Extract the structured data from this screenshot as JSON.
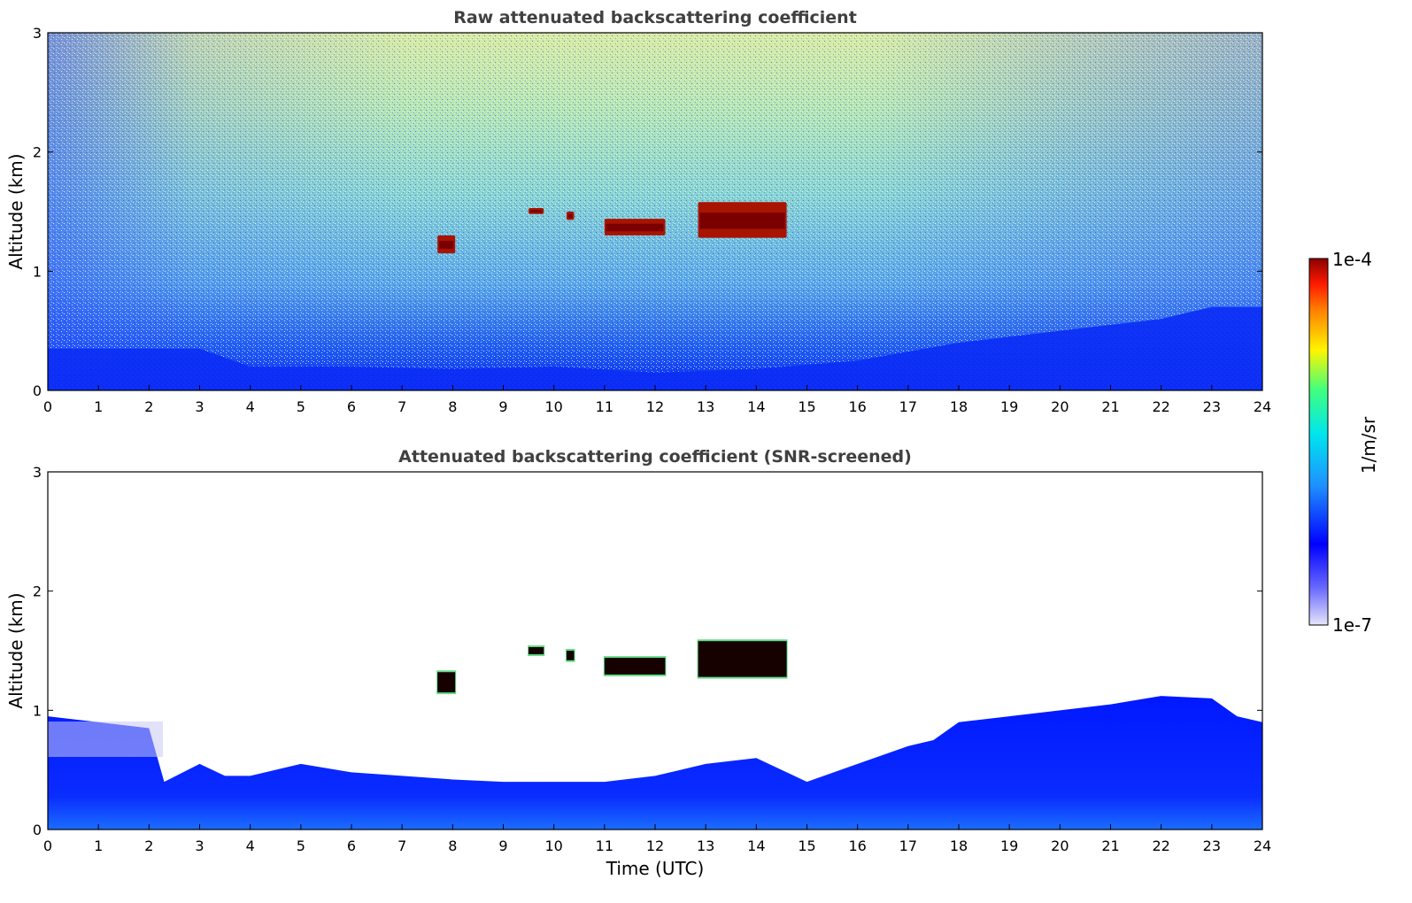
{
  "chart_data": [
    {
      "type": "heatmap",
      "title": "Raw attenuated backscattering coefficient",
      "xlabel": "",
      "ylabel": "Altitude (km)",
      "xlim": [
        0,
        24
      ],
      "ylim": [
        0,
        3
      ],
      "x_ticks": [
        "0",
        "1",
        "2",
        "3",
        "4",
        "5",
        "6",
        "7",
        "8",
        "9",
        "10",
        "11",
        "12",
        "13",
        "14",
        "15",
        "16",
        "17",
        "18",
        "19",
        "20",
        "21",
        "22",
        "23",
        "24"
      ],
      "y_ticks": [
        "0",
        "1",
        "2",
        "3"
      ],
      "noise_floor_km": {
        "times": [
          0,
          3,
          4,
          6,
          8,
          10,
          12,
          14,
          16,
          18,
          19,
          20,
          21,
          22,
          23,
          24
        ],
        "values": [
          0.35,
          0.35,
          0.2,
          0.2,
          0.18,
          0.2,
          0.15,
          0.18,
          0.25,
          0.4,
          0.45,
          0.5,
          0.55,
          0.6,
          0.7,
          0.7
        ]
      },
      "cloud_patches": [
        {
          "start": 7.7,
          "end": 8.05,
          "base": 1.15,
          "top": 1.3
        },
        {
          "start": 9.5,
          "end": 9.8,
          "base": 1.48,
          "top": 1.53
        },
        {
          "start": 10.25,
          "end": 10.4,
          "base": 1.43,
          "top": 1.5
        },
        {
          "start": 11.0,
          "end": 12.2,
          "base": 1.3,
          "top": 1.44
        },
        {
          "start": 12.85,
          "end": 14.6,
          "base": 1.28,
          "top": 1.58
        }
      ]
    },
    {
      "type": "heatmap",
      "title": "Attenuated backscattering coefficient (SNR-screened)",
      "xlabel": "Time (UTC)",
      "ylabel": "Altitude (km)",
      "xlim": [
        0,
        24
      ],
      "ylim": [
        0,
        3
      ],
      "x_ticks": [
        "0",
        "1",
        "2",
        "3",
        "4",
        "5",
        "6",
        "7",
        "8",
        "9",
        "10",
        "11",
        "12",
        "13",
        "14",
        "15",
        "16",
        "17",
        "18",
        "19",
        "20",
        "21",
        "22",
        "23",
        "24"
      ],
      "y_ticks": [
        "0",
        "1",
        "2",
        "3"
      ],
      "boundary_layer_top_km": {
        "times": [
          0,
          1,
          2,
          2.3,
          3,
          3.5,
          4,
          5,
          6,
          7,
          8,
          9,
          10,
          11,
          12,
          13,
          14,
          15,
          16,
          17,
          17.5,
          18,
          19,
          20,
          21,
          22,
          23,
          23.5,
          24
        ],
        "values": [
          0.95,
          0.9,
          0.85,
          0.4,
          0.55,
          0.45,
          0.45,
          0.55,
          0.48,
          0.45,
          0.42,
          0.4,
          0.4,
          0.4,
          0.45,
          0.55,
          0.6,
          0.4,
          0.55,
          0.7,
          0.75,
          0.9,
          0.95,
          1.0,
          1.05,
          1.12,
          1.1,
          0.95,
          0.9
        ]
      },
      "cloud_patches": [
        {
          "start": 7.7,
          "end": 8.05,
          "base": 1.15,
          "top": 1.32
        },
        {
          "start": 9.5,
          "end": 9.8,
          "base": 1.47,
          "top": 1.53
        },
        {
          "start": 10.25,
          "end": 10.4,
          "base": 1.42,
          "top": 1.5
        },
        {
          "start": 11.0,
          "end": 12.2,
          "base": 1.3,
          "top": 1.44
        },
        {
          "start": 12.85,
          "end": 14.6,
          "base": 1.28,
          "top": 1.58
        }
      ]
    }
  ],
  "colorbar": {
    "label": "1/m/sr",
    "max_label": "1e-4",
    "min_label": "1e-7",
    "scale": "log",
    "range": [
      1e-07,
      0.0001
    ],
    "colors": [
      "#e6e6fa",
      "#0000ff",
      "#1e90ff",
      "#00e5ee",
      "#3fff7f",
      "#fff500",
      "#ff4500",
      "#8b0000"
    ]
  }
}
